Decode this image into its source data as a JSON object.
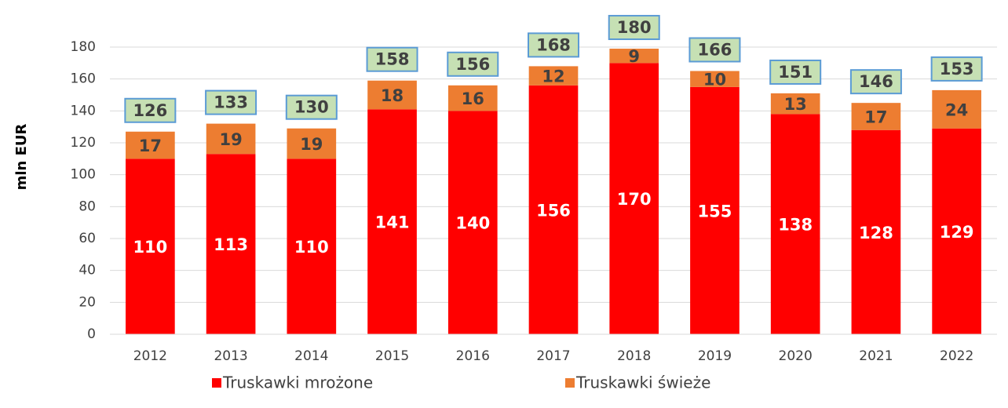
{
  "chart_data": {
    "type": "stacked-bar",
    "y_label": "mln EUR",
    "categories": [
      "2012",
      "2013",
      "2014",
      "2015",
      "2016",
      "2017",
      "2018",
      "2019",
      "2020",
      "2021",
      "2022"
    ],
    "series": [
      {
        "name": "Truskawki mrożone",
        "color": "#ff0000",
        "values": [
          110,
          113,
          110,
          141,
          140,
          156,
          170,
          155,
          138,
          128,
          129
        ]
      },
      {
        "name": "Truskawki świeże",
        "color": "#ed7d31",
        "values": [
          17,
          19,
          19,
          18,
          16,
          12,
          9,
          10,
          13,
          17,
          24
        ]
      }
    ],
    "totals": [
      126,
      133,
      130,
      158,
      156,
      168,
      180,
      166,
      151,
      146,
      153
    ],
    "ylim": [
      0,
      180
    ],
    "yticks": [
      0,
      20,
      40,
      60,
      80,
      100,
      120,
      140,
      160,
      180
    ],
    "grid": true,
    "legend": "bottom"
  }
}
